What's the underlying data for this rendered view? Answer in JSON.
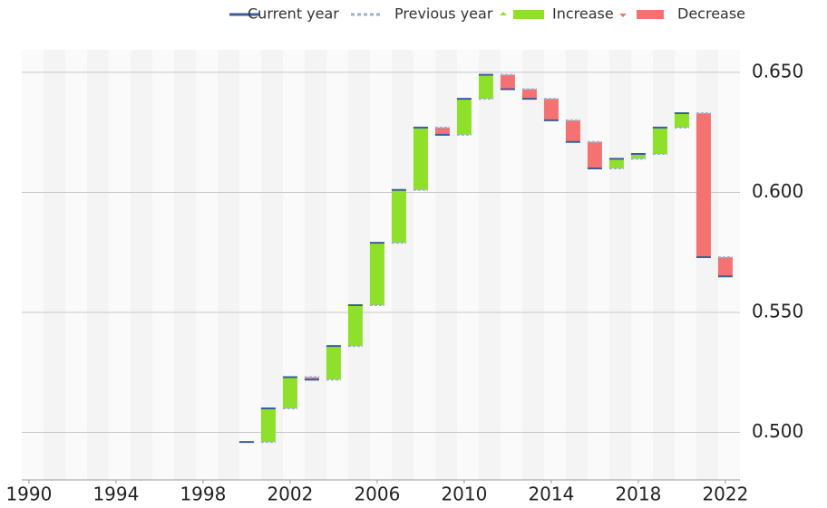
{
  "chart_data": {
    "type": "waterfall-change",
    "xlim": [
      1989.67,
      2022.67
    ],
    "xticks": [
      1990,
      1994,
      1998,
      2002,
      2006,
      2010,
      2014,
      2018,
      2022
    ],
    "ylim": [
      0.4802,
      0.6594
    ],
    "yticks": [
      {
        "value": 0.5,
        "label": "0.500"
      },
      {
        "value": 0.55,
        "label": "0.550"
      },
      {
        "value": 0.6,
        "label": "0.600"
      },
      {
        "value": 0.65,
        "label": "0.650"
      }
    ],
    "grid": true,
    "x": [
      2000,
      2001,
      2002,
      2003,
      2004,
      2005,
      2006,
      2007,
      2008,
      2009,
      2010,
      2011,
      2012,
      2013,
      2014,
      2015,
      2016,
      2017,
      2018,
      2019,
      2020,
      2021,
      2022
    ],
    "series": [
      {
        "name": "Current year",
        "color": "#3a5f95",
        "values": [
          0.496,
          0.51,
          0.523,
          0.522,
          0.536,
          0.553,
          0.579,
          0.601,
          0.627,
          0.624,
          0.639,
          0.649,
          0.643,
          0.639,
          0.63,
          0.621,
          0.61,
          0.614,
          0.616,
          0.627,
          0.633,
          0.573,
          0.565
        ]
      },
      {
        "name": "Previous year",
        "color": "#9bb3cc",
        "values": [
          null,
          0.496,
          0.51,
          0.523,
          0.522,
          0.536,
          0.553,
          0.579,
          0.601,
          0.627,
          0.624,
          0.639,
          0.649,
          0.643,
          0.639,
          0.63,
          0.621,
          0.61,
          0.614,
          0.616,
          0.627,
          0.633,
          0.573
        ]
      }
    ],
    "increase": {
      "name": "Increase",
      "color": "#8ee02a"
    },
    "decrease": {
      "name": "Decrease",
      "color": "#f47272"
    }
  }
}
